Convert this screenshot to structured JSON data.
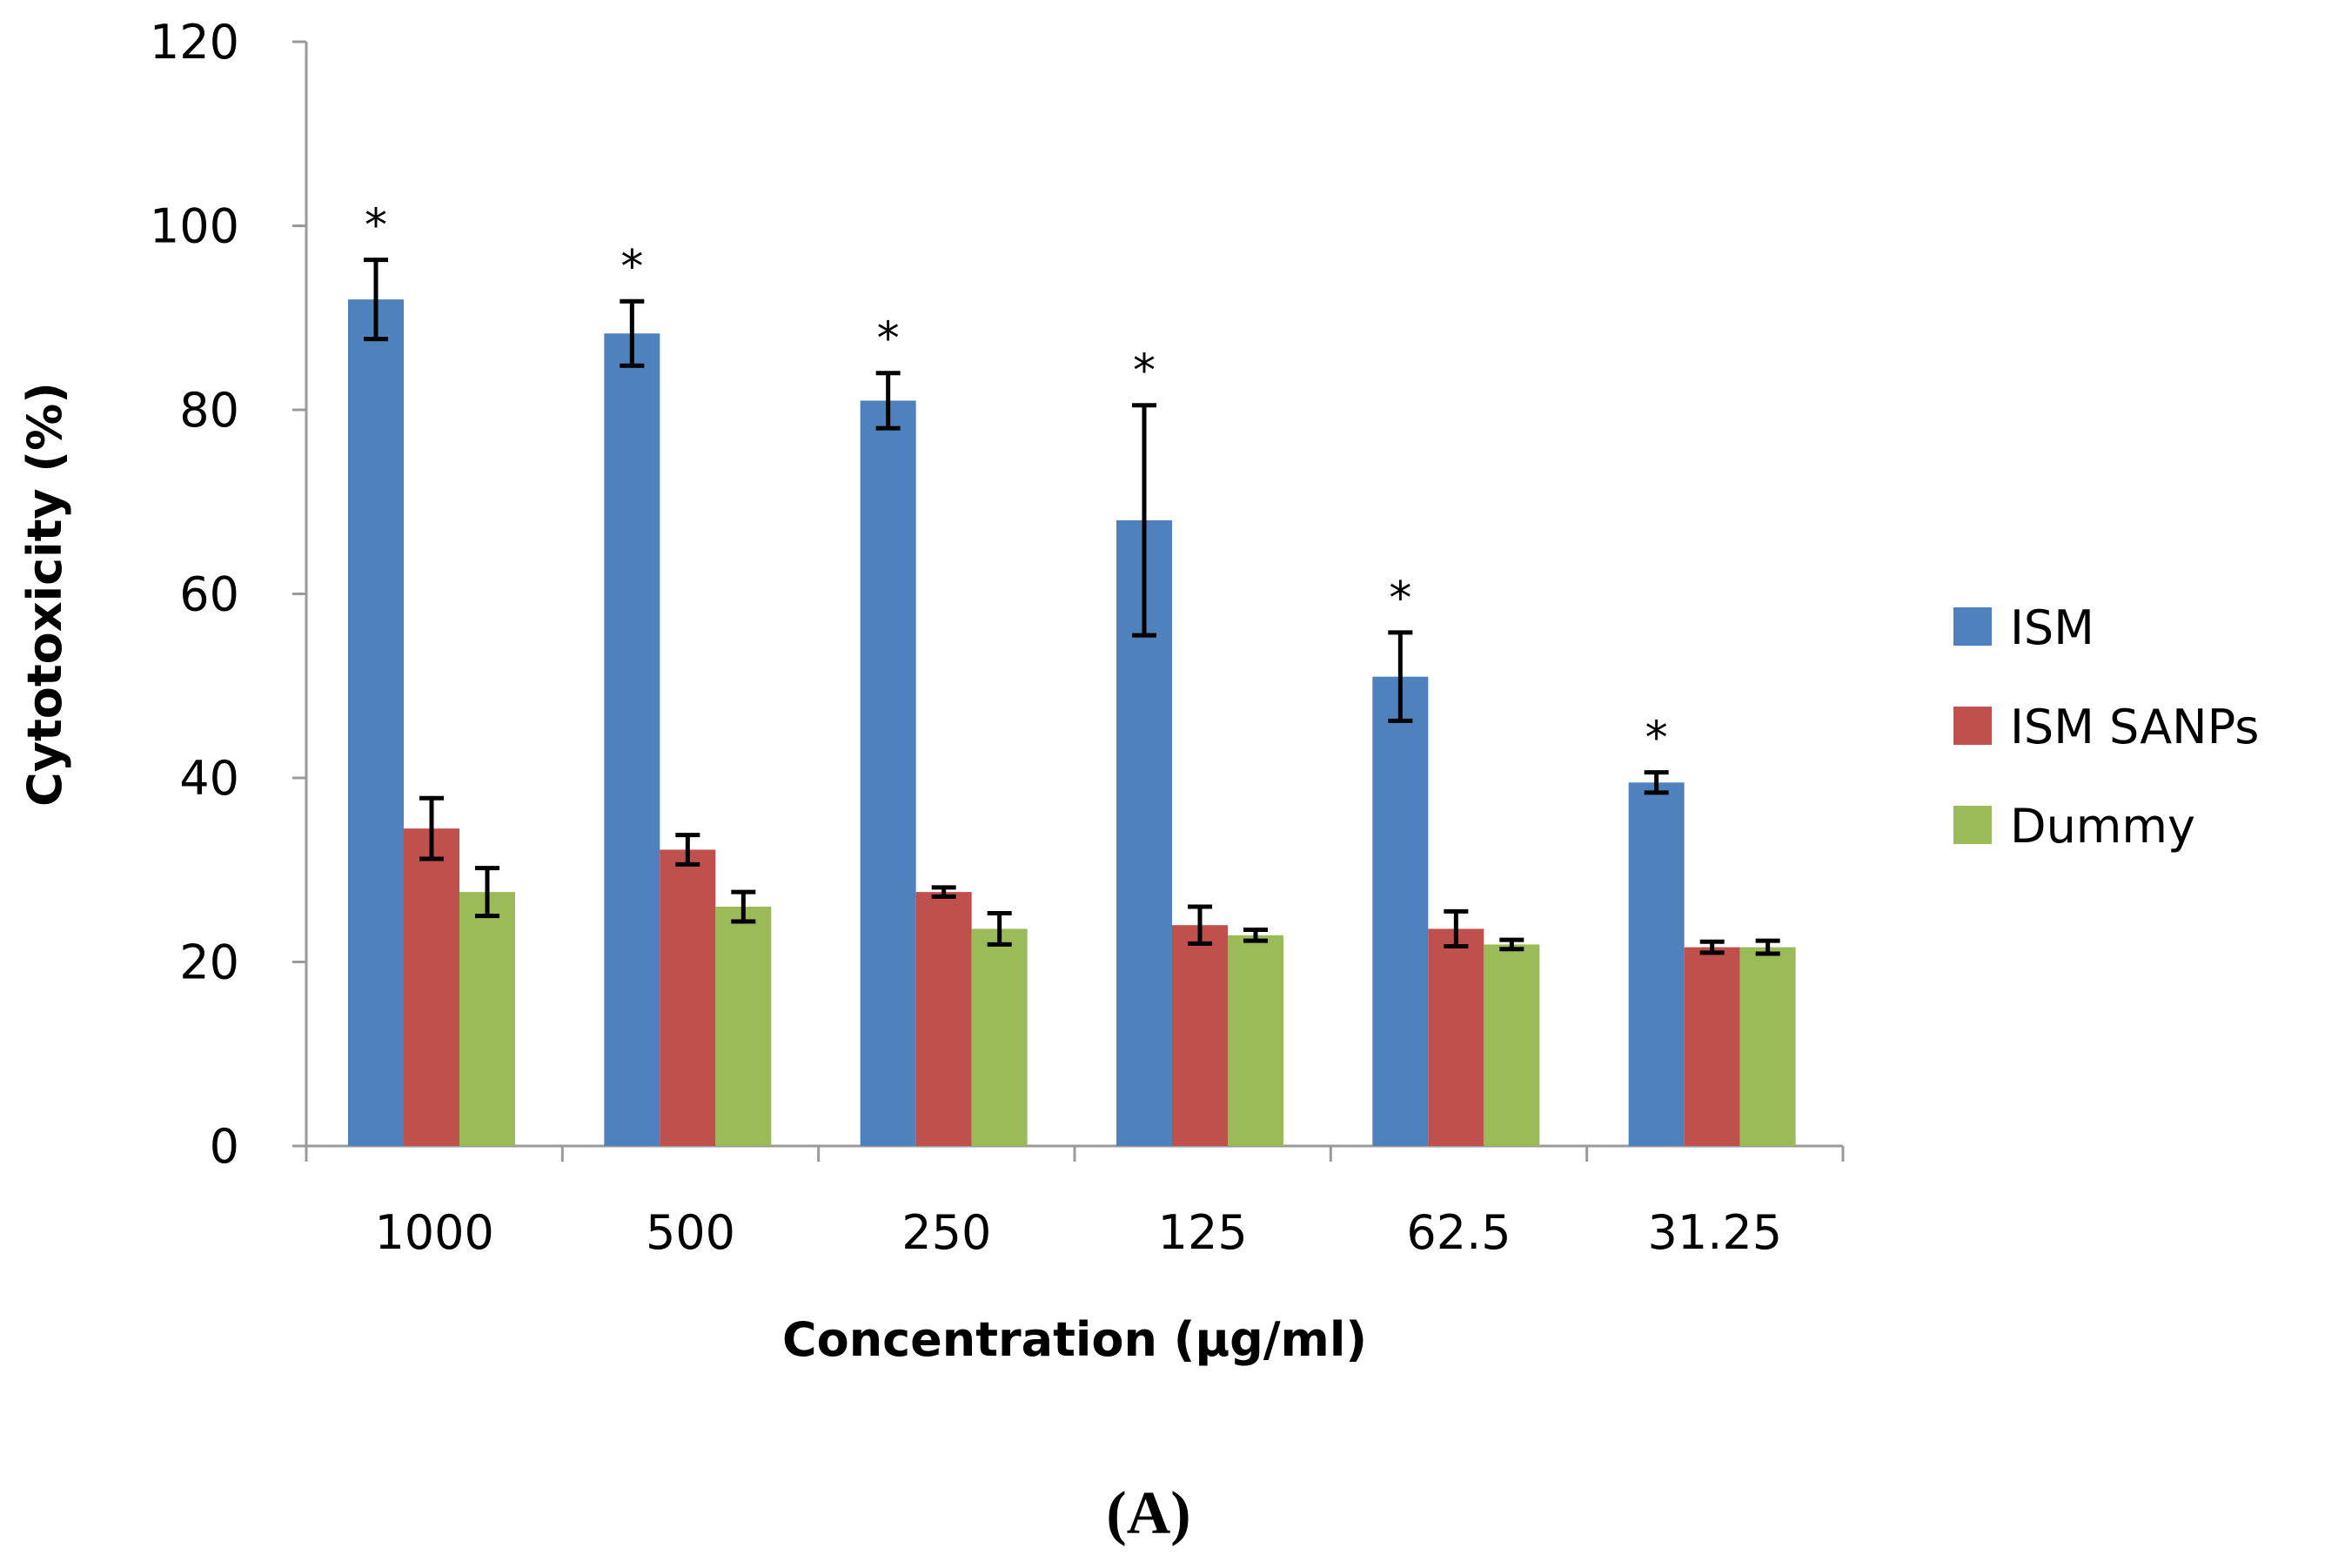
{
  "chart_data": {
    "type": "bar",
    "title": "",
    "xlabel": "Concentration (µg/ml)",
    "ylabel": "Cytotoxicity (%)",
    "ylim": [
      0,
      120
    ],
    "yticks": [
      0,
      20,
      40,
      60,
      80,
      100,
      120
    ],
    "grid": false,
    "legend_position": "right",
    "categories": [
      "1000",
      "500",
      "250",
      "125",
      "62.5",
      "31.25"
    ],
    "series": [
      {
        "name": "ISM",
        "color": "#4f81bd",
        "values": [
          92,
          88.3,
          81,
          68,
          51,
          39.5
        ],
        "errors": [
          4.3,
          3.5,
          3,
          12.5,
          4.8,
          1.1
        ],
        "significance": [
          "*",
          "*",
          "*",
          "*",
          "*",
          "*"
        ]
      },
      {
        "name": "ISM SANPs",
        "color": "#c0504d",
        "values": [
          34.5,
          32.2,
          27.6,
          24,
          23.6,
          21.6
        ],
        "errors": [
          3.3,
          1.6,
          0.5,
          2,
          1.9,
          0.6
        ],
        "significance": [
          "",
          "",
          "",
          "",
          "",
          ""
        ]
      },
      {
        "name": "Dummy",
        "color": "#9bbb59",
        "values": [
          27.6,
          26,
          23.6,
          22.9,
          21.9,
          21.6
        ],
        "errors": [
          2.6,
          1.6,
          1.7,
          0.6,
          0.5,
          0.7
        ],
        "significance": [
          "",
          "",
          "",
          "",
          "",
          ""
        ]
      }
    ]
  },
  "panel_label": "(A)"
}
